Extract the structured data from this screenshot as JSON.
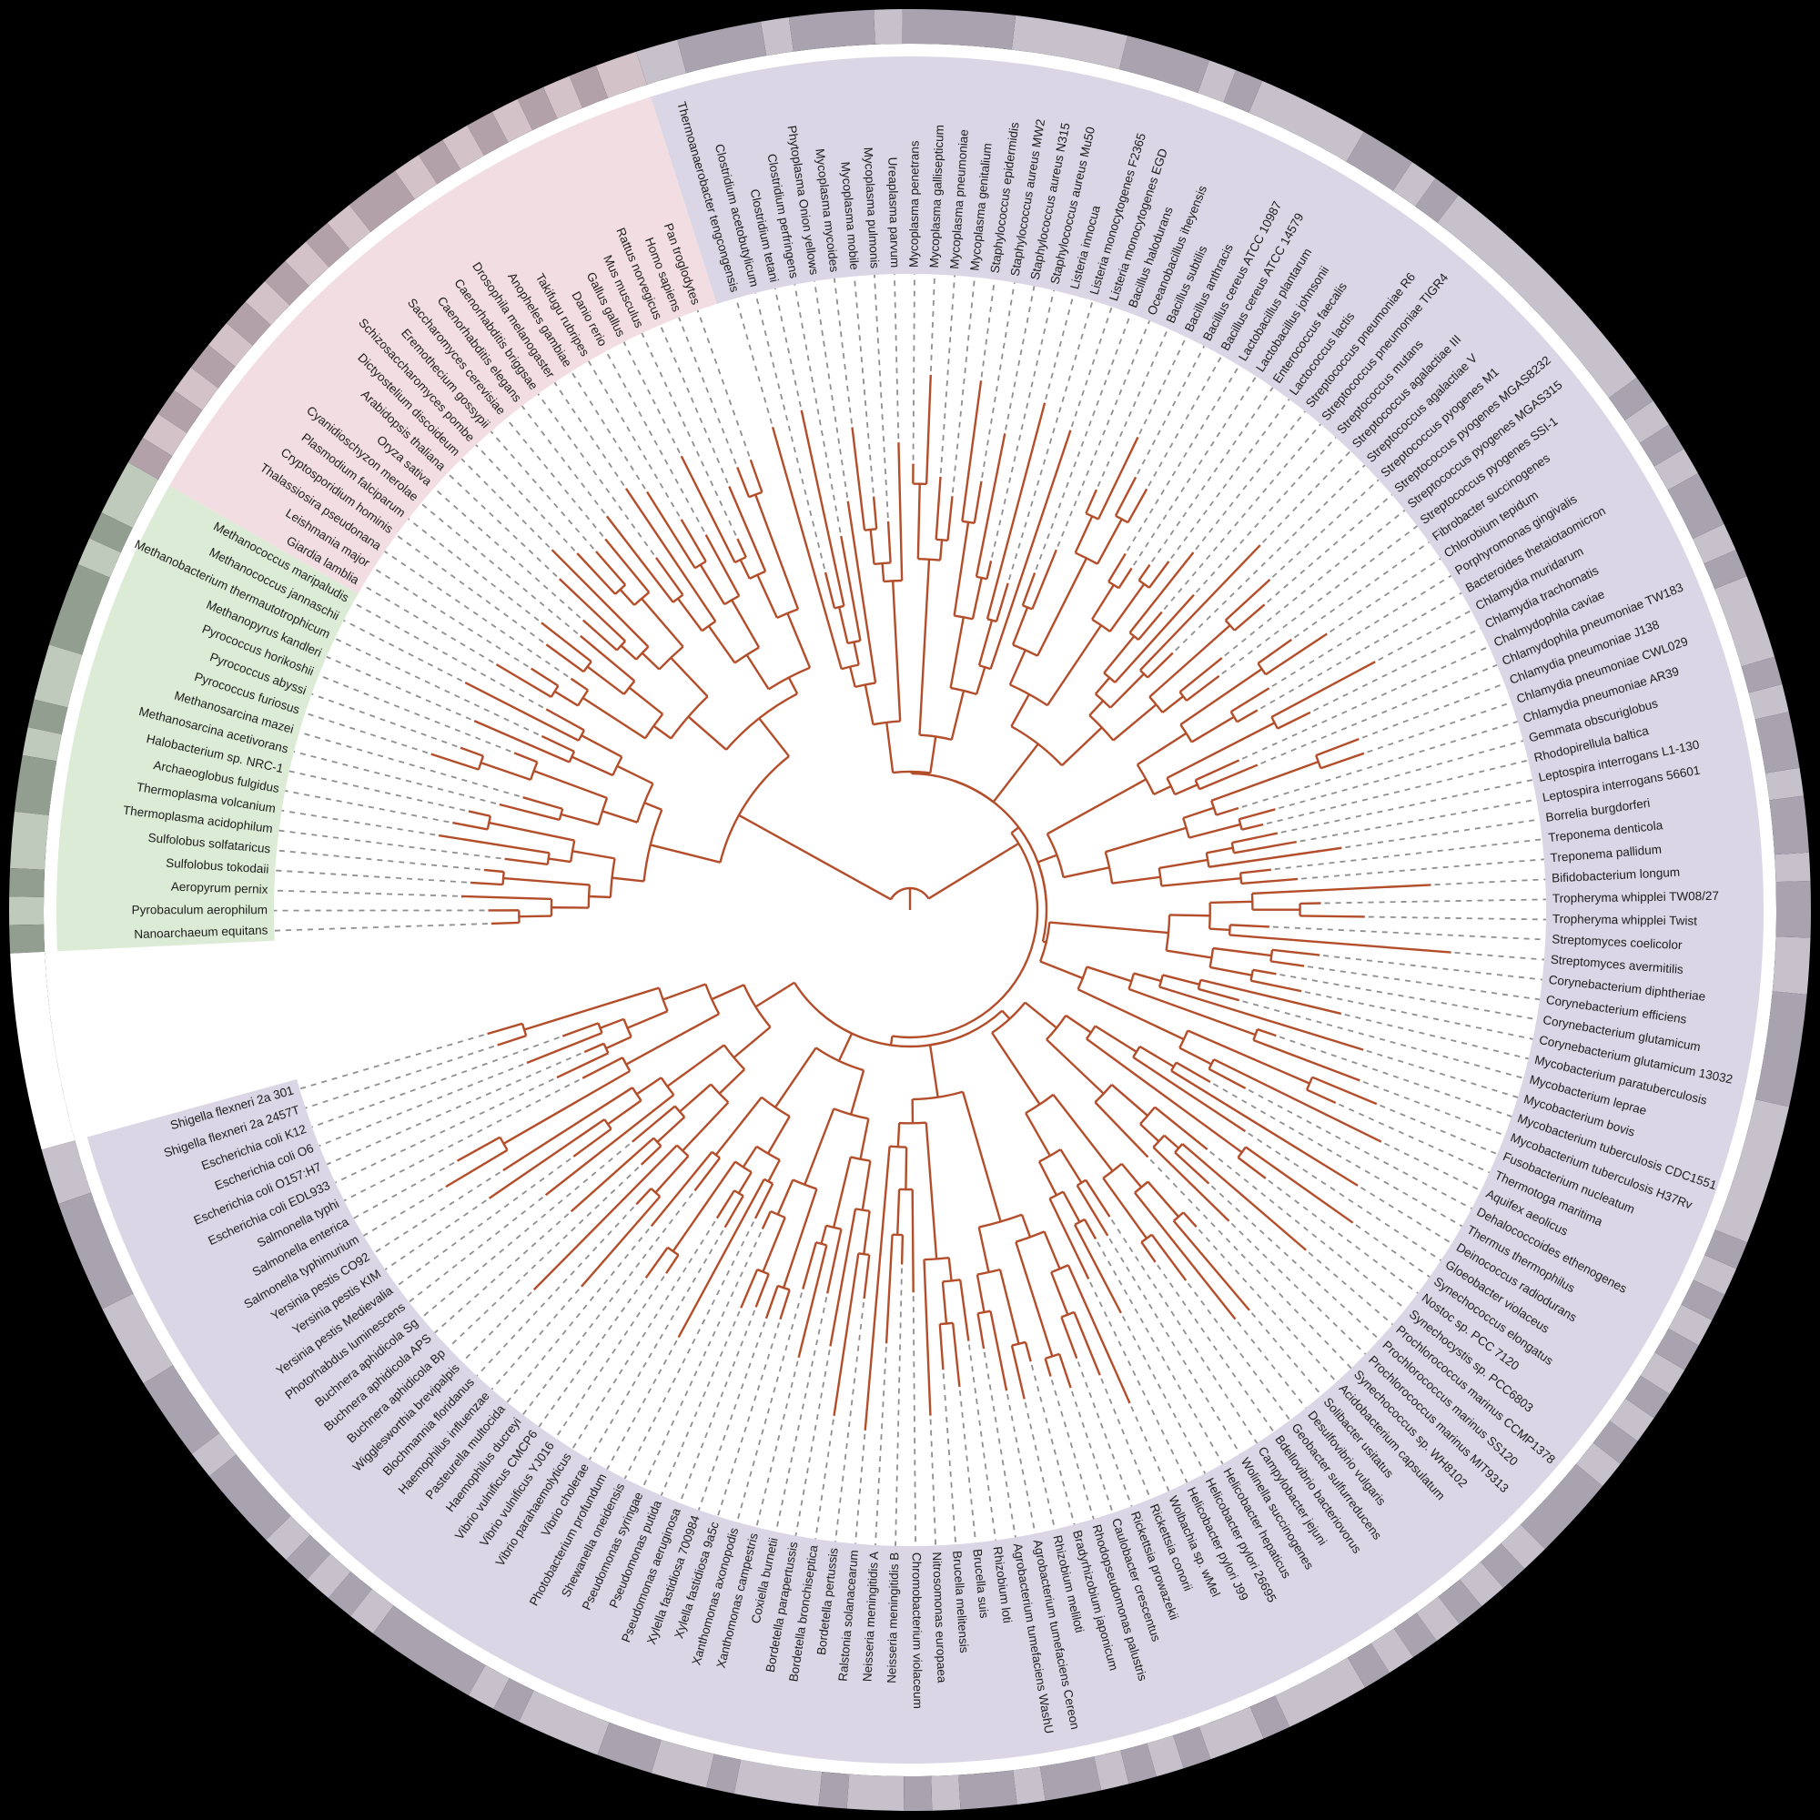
{
  "figure": {
    "kind": "circular-phylogenetic-tree",
    "background_color": "#000000",
    "inner_disc_color": "#ffffff",
    "branch_color": "#b34d2a",
    "guide_line_color": "#8f8f8f",
    "label_color": "#1c1c1c"
  },
  "chart_data": {
    "type": "circular-phylogram",
    "legend": "none",
    "domains": [
      {
        "id": "eukaryota",
        "sector_color": "#f2dee2",
        "ring_colors": [
          "#d3c3c8",
          "#b2a1a8"
        ],
        "taxa": [
          "Pan troglodytes",
          "Homo sapiens",
          "Rattus norvegicus",
          "Mus musculus",
          "Gallus gallus",
          "Danio rerio",
          "Takifugu rubripes",
          "Anopheles gambiae",
          "Drosophila melanogaster",
          "Caenorhabditis briggsae",
          "Caenorhabditis elegans",
          "Saccharomyces cerevisiae",
          "Eremothecium gossypii",
          "Schizosaccharomyces pombe",
          "Dictyostelium discoideum",
          "Arabidopsis thaliana",
          "Oryza sativa",
          "Cyanidioschyzon merolae",
          "Plasmodium falciparum",
          "Cryptosporidium hominis",
          "Thalassiosira pseudonana",
          "Leishmania major",
          "Giardia lamblia"
        ]
      },
      {
        "id": "archaea",
        "sector_color": "#dcebd5",
        "ring_colors": [
          "#bfcabc",
          "#929e90"
        ],
        "taxa": [
          "Methanococcus maripaludis",
          "Methanococcus jannaschii",
          "Methanobacterium thermautotrophicum",
          "Methanopyrus kandleri",
          "Pyrococcus horikoshii",
          "Pyrococcus abyssi",
          "Pyrococcus furiosus",
          "Methanosarcina mazei",
          "Methanosarcina acetivorans",
          "Halobacterium sp. NRC-1",
          "Archaeoglobus fulgidus",
          "Thermoplasma volcanium",
          "Thermoplasma acidophilum",
          "Sulfolobus solfataricus",
          "Sulfolobus tokodaii",
          "Aeropyrum pernix",
          "Pyrobaculum aerophilum",
          "Nanoarchaeum equitans"
        ]
      },
      {
        "id": "bacteria",
        "sector_color": "#dad6e5",
        "ring_colors": [
          "#c6c1cb",
          "#a9a2af"
        ],
        "taxa": [
          "Shigella flexneri 2a 301",
          "Shigella flexneri 2a 2457T",
          "Escherichia coli K12",
          "Escherichia coli O6",
          "Escherichia coli O157:H7",
          "Escherichia coli EDL933",
          "Salmonella typhi",
          "Salmonella enterica",
          "Salmonella typhimurium",
          "Yersinia pestis CO92",
          "Yersinia pestis KIM",
          "Yersinia pestis Medievalia",
          "Photorhabdus luminescens",
          "Buchnera aphidicola Sg",
          "Buchnera aphidicola APS",
          "Buchnera aphidicola Bp",
          "Wigglesworthia brevipalpis",
          "Blochmannia floridanus",
          "Haemophilus influenzae",
          "Pasteurella multocida",
          "Haemophilus ducreyi",
          "Vibrio vulnificus CMCP6",
          "Vibrio vulnificus YJ016",
          "Vibrio parahaemolyticus",
          "Vibrio cholerae",
          "Photobacterium profundum",
          "Shewanella oneidensis",
          "Pseudomonas syringae",
          "Pseudomonas putida",
          "Pseudomonas aeruginosa",
          "Xylella fastidiosa 700984",
          "Xylella fastidiosa 9a5c",
          "Xanthomonas axonopodis",
          "Xanthomonas campestris",
          "Coxiella burnetii",
          "Bordetella parapertussis",
          "Bordetella bronchiseptica",
          "Bordetella pertussis",
          "Ralstonia solanacearum",
          "Neisseria meningitidis A",
          "Neisseria meningitidis B",
          "Chromobacterium violaceum",
          "Nitrosomonas europaea",
          "Brucella melitensis",
          "Brucella suis",
          "Rhizobium loti",
          "Agrobacterium tumefaciens WashU",
          "Agrobacterium tumefaciens Cereon",
          "Rhizobium meliloti",
          "Bradyrhizobium japonicum",
          "Rhodopseudomonas palustris",
          "Caulobacter crescentus",
          "Rickettsia prowazekii",
          "Rickettsia conorii",
          "Wolbachia sp. wMel",
          "Helicobacter pylori J99",
          "Helicobacter pylori 26695",
          "Helicobacter hepaticus",
          "Wolinella succinogenes",
          "Campylobacter jejuni",
          "Bdellovibrio bacteriovorus",
          "Geobacter sulfurreducens",
          "Desulfovibrio vulgaris",
          "Solibacter usitatus",
          "Acidobacterium capsulatum",
          "Synechococcus sp. WH8102",
          "Prochlorococcus marinus MIT9313",
          "Prochlorococcus marinus SS120",
          "Prochlorococcus marinus CCMP1378",
          "Synechocystis sp. PCC6803",
          "Nostoc sp. PCC 7120",
          "Synechococcus elongatus",
          "Gloeobacter violaceus",
          "Deinococcus radiodurans",
          "Thermus thermophilus",
          "Dehalococcoides ethenogenes",
          "Aquifex aeolicus",
          "Thermotoga maritima",
          "Fusobacterium nucleatum",
          "Mycobacterium tuberculosis H37Rv",
          "Mycobacterium tuberculosis CDC1551",
          "Mycobacterium bovis",
          "Mycobacterium leprae",
          "Mycobacterium paratuberculosis",
          "Corynebacterium glutamicum 13032",
          "Corynebacterium glutamicum",
          "Corynebacterium efficiens",
          "Corynebacterium diphtheriae",
          "Streptomyces avermitilis",
          "Streptomyces coelicolor",
          "Tropheryma whipplei Twist",
          "Tropheryma whipplei TW08/27",
          "Bifidobacterium longum",
          "Treponema pallidum",
          "Treponema denticola",
          "Borrelia burgdorferi",
          "Leptospira interrogans 56601",
          "Leptospira interrogans L1-130",
          "Rhodopirellula baltica",
          "Gemmata obscuriglobus",
          "Chlamydia pneumoniae AR39",
          "Chlamydia pneumoniae CWL029",
          "Chlamydia pneumoniae J138",
          "Chlamydophila pneumoniae TW183",
          "Chalmydophila caviae",
          "Chlamydia trachomatis",
          "Chlamydia muridarum",
          "Bacteroides thetaiotaomicron",
          "Porphyromonas gingivalis",
          "Chlorobium tepidum",
          "Fibrobacter succinogenes",
          "Streptococcus pyogenes SSI-1",
          "Streptococcus pyogenes MGAS315",
          "Streptococcus pyogenes MGAS8232",
          "Streptococcus pyogenes M1",
          "Streptococcus agalactiae V",
          "Streptococcus agalactiae III",
          "Streptococcus mutans",
          "Streptococcus pneumoniae TIGR4",
          "Streptococcus pneumoniae R6",
          "Lactococcus lactis",
          "Enterococcus faecalis",
          "Lactobacillus johnsonii",
          "Lactobacillus plantarum",
          "Bacillus cereus ATCC 14579",
          "Bacillus cereus ATCC 10987",
          "Bacillus anthracis",
          "Bacillus subtilis",
          "Oceanobacillus iheyensis",
          "Bacillus halodurans",
          "Listeria monocytogenes EGD",
          "Listeria monocytogenes F2365",
          "Listeria innocua",
          "Staphylococcus aureus Mu50",
          "Staphylococcus aureus N315",
          "Staphylococcus aureus MW2",
          "Staphylococcus epidermidis",
          "Mycoplasma genitalium",
          "Mycoplasma pneumoniae",
          "Mycoplasma gallisepticum",
          "Mycoplasma penetrans",
          "Ureaplasma parvum",
          "Mycoplasma pulmonis",
          "Mycoplasma mobile",
          "Mycoplasma mycoides",
          "Phytoplasma Onion yellows",
          "Clostridium perfringens",
          "Clostridium tetani",
          "Clostridium acetobutylicum",
          "Thermoanaerobacter tengcongensis"
        ]
      }
    ]
  }
}
